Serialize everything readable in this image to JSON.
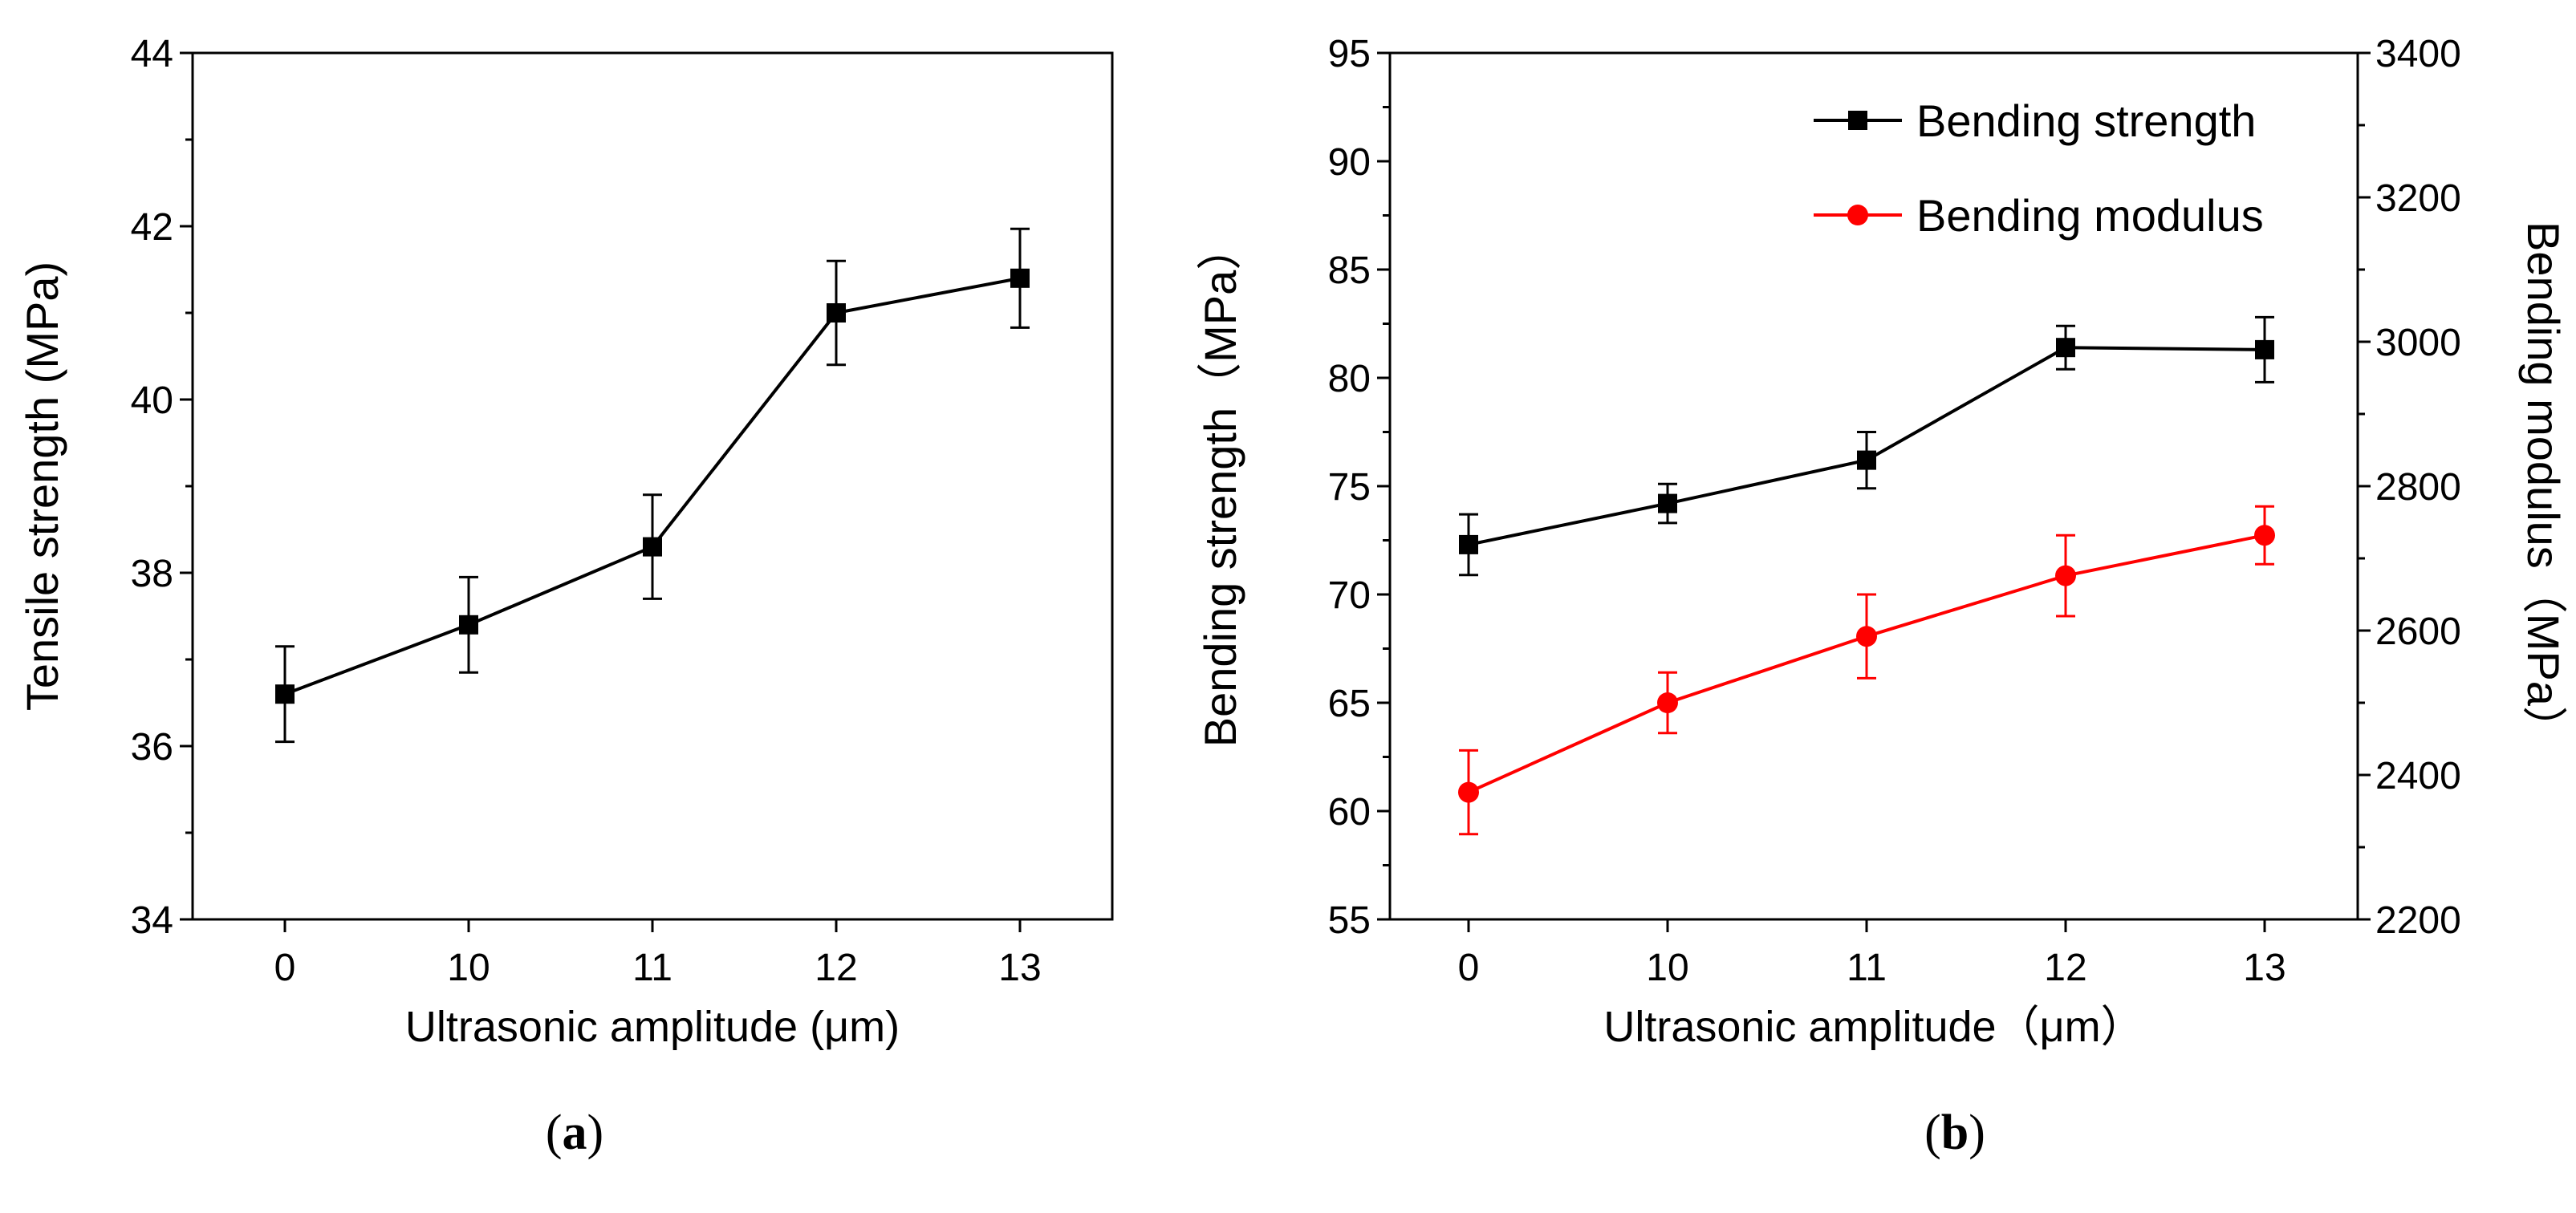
{
  "chart_data": [
    {
      "panel": "a",
      "type": "line",
      "caption": "(a)",
      "caption_open": "(",
      "caption_letter": "a",
      "caption_close": ")",
      "xlabel": "Ultrasonic amplitude (μm)",
      "ylabel": "Tensile strength (MPa)",
      "categories": [
        "0",
        "10",
        "11",
        "12",
        "13"
      ],
      "ylim": [
        34,
        44
      ],
      "yticks": [
        "34",
        "36",
        "38",
        "40",
        "42",
        "44"
      ],
      "grid": false,
      "series": [
        {
          "name": "Tensile strength",
          "color": "#000000",
          "marker": "square",
          "values": [
            36.6,
            37.4,
            38.3,
            41.0,
            41.4
          ],
          "errors": [
            0.55,
            0.55,
            0.6,
            0.6,
            0.57
          ]
        }
      ]
    },
    {
      "panel": "b",
      "type": "line",
      "caption": "(b)",
      "caption_open": "(",
      "caption_letter": "b",
      "caption_close": ")",
      "xlabel": "Ultrasonic amplitude（μm）",
      "ylabel": "Bending strength（MPa）",
      "ylabel_right": "Bending modulus（MPa）",
      "categories": [
        "0",
        "10",
        "11",
        "12",
        "13"
      ],
      "ylim": [
        55,
        95
      ],
      "yticks": [
        "55",
        "60",
        "65",
        "70",
        "75",
        "80",
        "85",
        "90",
        "95"
      ],
      "ylim_right": [
        2200,
        3400
      ],
      "yticks_right": [
        "2200",
        "2400",
        "2600",
        "2800",
        "3000",
        "3200",
        "3400"
      ],
      "legend_position": "top-right",
      "grid": false,
      "series": [
        {
          "name": "Bending strength",
          "axis": "left",
          "color": "#000000",
          "marker": "square",
          "values": [
            72.3,
            74.2,
            76.2,
            81.4,
            81.3
          ],
          "errors": [
            1.4,
            0.9,
            1.3,
            1.0,
            1.5
          ]
        },
        {
          "name": "Bending modulus",
          "axis": "right",
          "color": "#ff0000",
          "marker": "circle",
          "values": [
            2376,
            2500,
            2592,
            2676,
            2732
          ],
          "errors": [
            58,
            42,
            58,
            56,
            40
          ]
        }
      ]
    }
  ]
}
